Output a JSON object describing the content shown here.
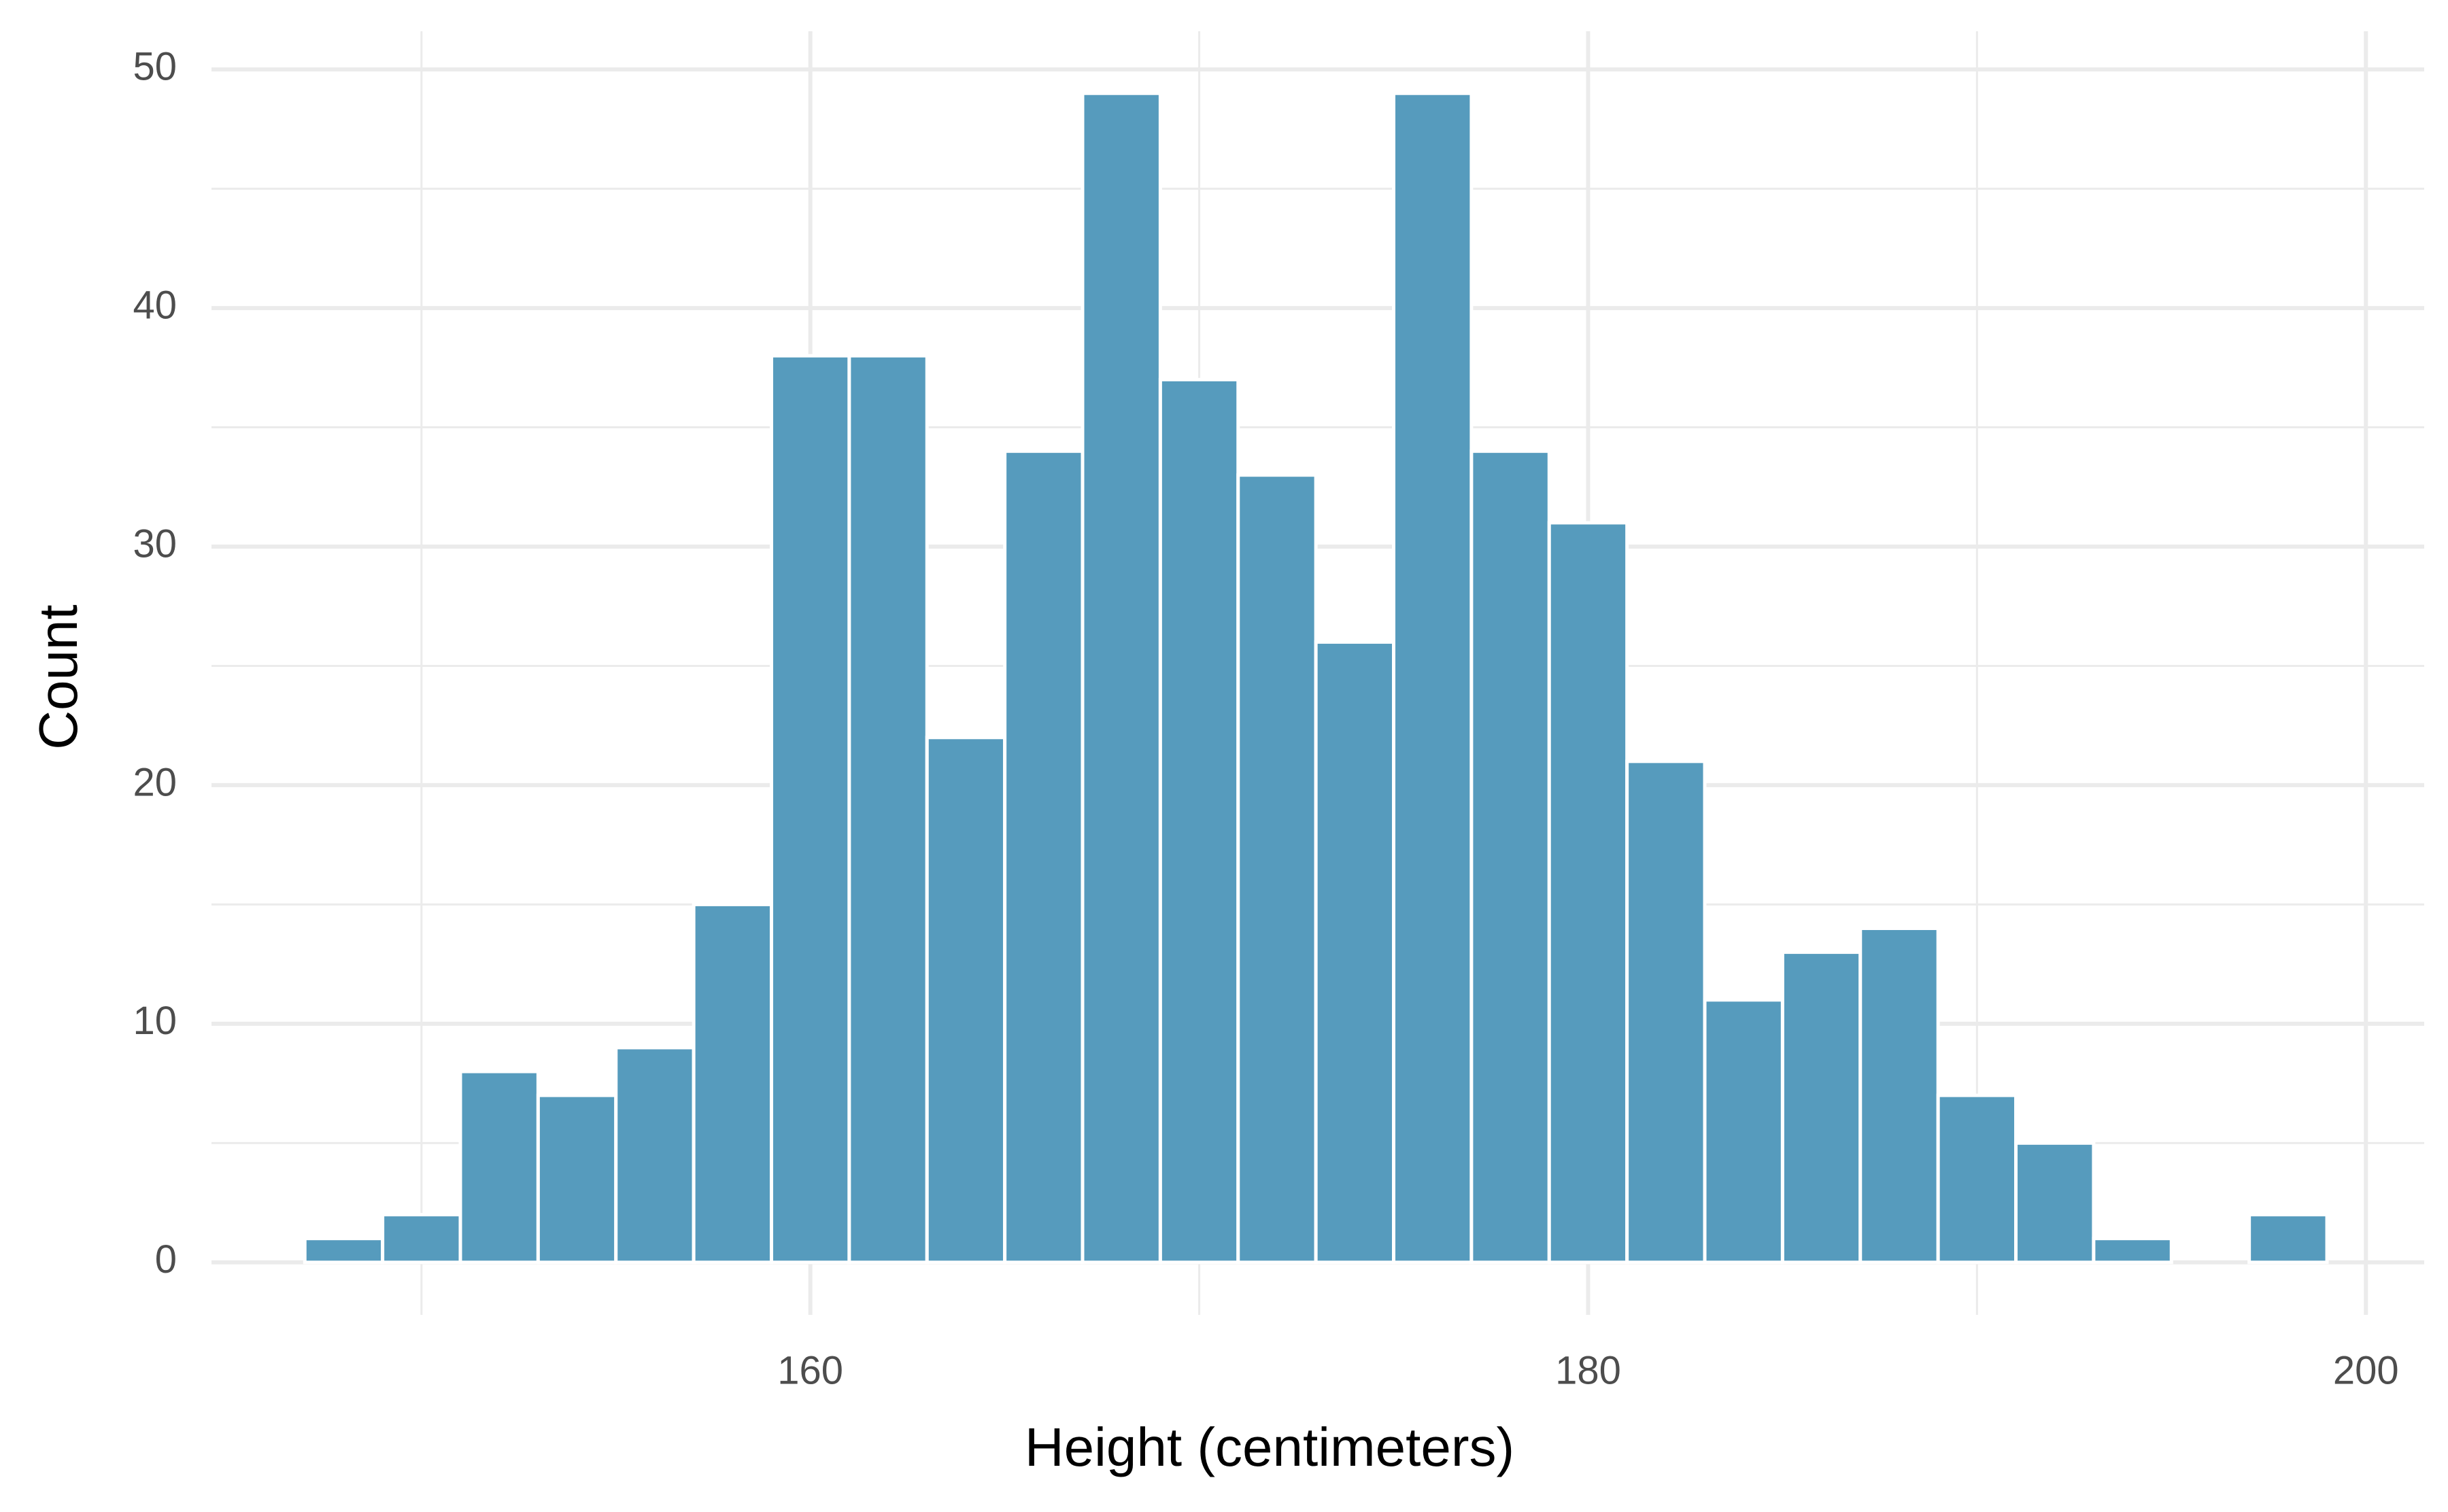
{
  "chart_data": {
    "type": "histogram",
    "x_label": "Height (centimeters)",
    "y_label": "Count",
    "bins": [
      147,
      149,
      151,
      153,
      155,
      157,
      159,
      161,
      163,
      165,
      167,
      169,
      171,
      173,
      175,
      177,
      179,
      181,
      183,
      185,
      187,
      189,
      191,
      193,
      195,
      197,
      199
    ],
    "values": [
      1,
      2,
      8,
      7,
      9,
      15,
      38,
      38,
      22,
      34,
      49,
      37,
      33,
      26,
      49,
      34,
      31,
      21,
      11,
      13,
      14,
      7,
      5,
      1,
      0,
      2
    ],
    "color": "#569bbd",
    "xlim": [
      144.6,
      201.5
    ],
    "xticks": [
      160,
      180,
      200
    ],
    "x_minor_ticks": [
      150,
      170,
      190
    ],
    "ylim": [
      -2.2,
      51.6
    ],
    "yticks": [
      0,
      10,
      20,
      30,
      40,
      50
    ],
    "y_minor_ticks": [
      5,
      15,
      25,
      35,
      45
    ],
    "grid": true
  }
}
